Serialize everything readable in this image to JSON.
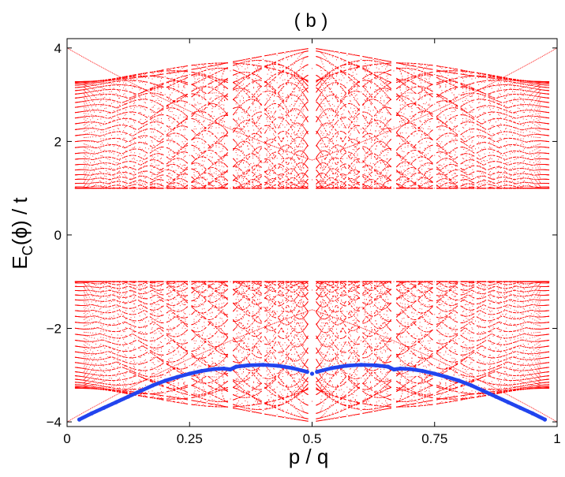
{
  "chart_data": {
    "type": "scatter",
    "title": "( b )",
    "xlabel": "p / q",
    "ylabel_main": "E",
    "ylabel_sub": "C",
    "ylabel_rest": "(ϕ) / t",
    "xlim": [
      0,
      1
    ],
    "ylim": [
      -4.1,
      4.2
    ],
    "xticks": [
      0,
      0.25,
      0.5,
      0.75,
      1
    ],
    "xtick_labels": [
      "0",
      "0.25",
      "0.5",
      "0.75",
      "1"
    ],
    "yticks": [
      -4,
      -2,
      0,
      2,
      4
    ],
    "ytick_labels": [
      "−4",
      "−2",
      "0",
      "2",
      "4"
    ],
    "grid": false,
    "legend": "none",
    "spectrum_color": "#ff0000",
    "ground_color": "#2244ee",
    "series": [
      {
        "kind": "spectrum",
        "note_values": "band edges by flux p/q",
        "max_denominator": 60,
        "outer_band": [
          1.0,
          4.0
        ],
        "symmetric_about_zero": true
      },
      {
        "kind": "ground_state",
        "x": [
          0.025,
          0.05,
          0.075,
          0.1,
          0.125,
          0.15,
          0.175,
          0.2,
          0.225,
          0.25,
          0.275,
          0.3,
          0.32,
          0.333,
          0.345,
          0.37,
          0.4,
          0.43,
          0.46,
          0.49,
          0.5,
          0.51,
          0.54,
          0.57,
          0.6,
          0.63,
          0.655,
          0.667,
          0.68,
          0.7,
          0.725,
          0.75,
          0.775,
          0.8,
          0.825,
          0.85,
          0.875,
          0.9,
          0.925,
          0.95,
          0.975
        ],
        "y": [
          -3.95,
          -3.82,
          -3.7,
          -3.58,
          -3.46,
          -3.34,
          -3.22,
          -3.12,
          -3.04,
          -2.97,
          -2.91,
          -2.87,
          -2.86,
          -2.88,
          -2.82,
          -2.79,
          -2.78,
          -2.8,
          -2.85,
          -2.93,
          -2.97,
          -2.93,
          -2.85,
          -2.8,
          -2.78,
          -2.79,
          -2.82,
          -2.88,
          -2.86,
          -2.87,
          -2.91,
          -2.97,
          -3.04,
          -3.12,
          -3.22,
          -3.34,
          -3.46,
          -3.58,
          -3.7,
          -3.82,
          -3.95
        ]
      }
    ]
  }
}
